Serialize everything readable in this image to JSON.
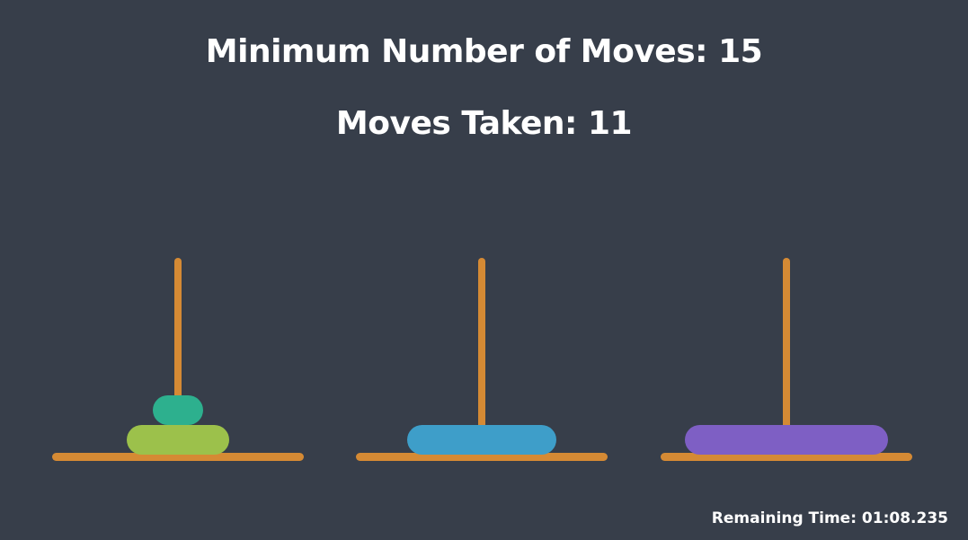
{
  "header": {
    "min_moves_label": "Minimum Number of Moves: 15",
    "moves_taken_label": "Moves Taken: 11"
  },
  "game": {
    "minimum_moves": 15,
    "moves_taken": 11,
    "remaining_time_label": "Remaining Time: 01:08.235",
    "colors": {
      "background": "#373e4a",
      "rod": "#d58a34",
      "disk_1": "#2db08e",
      "disk_2": "#9cc14b",
      "disk_3": "#3e9ec9",
      "disk_4": "#7e5fc4"
    },
    "pegs": [
      {
        "disks": [
          2,
          1
        ]
      },
      {
        "disks": [
          3
        ]
      },
      {
        "disks": [
          4
        ]
      }
    ]
  }
}
